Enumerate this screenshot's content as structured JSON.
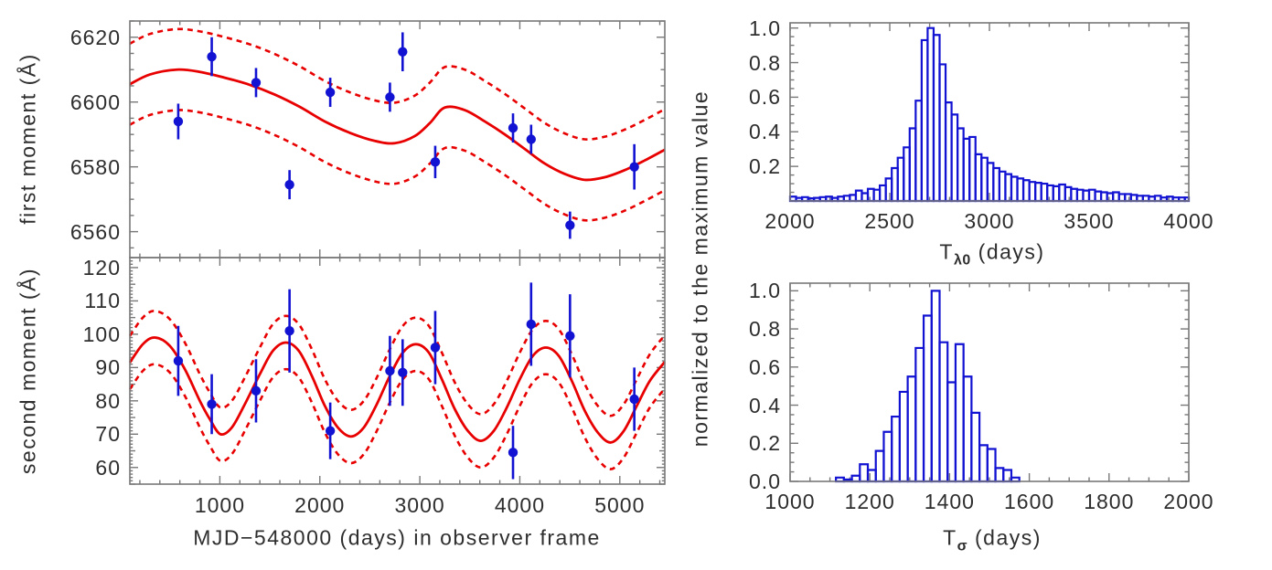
{
  "figure": {
    "background": "#ffffff",
    "blue": "#1212d2",
    "red": "#e80000",
    "frame_color": "#787878",
    "text_color": "#2e2e2e"
  },
  "chart_data": [
    {
      "id": "first-moment-vs-time",
      "type": "scatter",
      "ylabel": "first moment (Å)",
      "xlim": [
        100,
        5450
      ],
      "ylim": [
        6552,
        6625
      ],
      "x_ticks": [
        1000,
        2000,
        3000,
        4000,
        5000
      ],
      "y_ticks": [
        6560,
        6580,
        6600,
        6620
      ],
      "y_tick_labels": [
        "6560",
        "6580",
        "6600",
        "6620"
      ],
      "x_minor": 200,
      "y_minor": 5,
      "grid": false,
      "points": {
        "x": [
          584,
          919,
          1362,
          1697,
          2104,
          2701,
          2828,
          3154,
          3932,
          4113,
          4502,
          5145
        ],
        "y": [
          6594,
          6614,
          6606,
          6574.5,
          6603,
          6601.5,
          6615.5,
          6581.5,
          6592,
          6588.5,
          6562,
          6580
        ],
        "yerr": [
          5.5,
          6,
          4.5,
          4.5,
          4.5,
          4.5,
          6,
          5,
          4.5,
          4.5,
          4.2,
          7
        ]
      },
      "model": {
        "x": [
          100,
          300,
          570,
          800,
          1050,
          1300,
          1550,
          1800,
          2050,
          2300,
          2550,
          2750,
          2950,
          3100,
          3250,
          3450,
          3650,
          3850,
          4050,
          4250,
          4450,
          4650,
          4850,
          5050,
          5250,
          5450
        ],
        "y": [
          6605.5,
          6608.5,
          6610,
          6609.3,
          6607.5,
          6605.3,
          6602.3,
          6598.5,
          6594,
          6590.5,
          6588,
          6587.3,
          6589.5,
          6593.5,
          6598.3,
          6597.5,
          6594,
          6590,
          6585.5,
          6581,
          6577.8,
          6576,
          6576.8,
          6579,
          6582,
          6585.3
        ]
      },
      "band_offset": 12.5
    },
    {
      "id": "second-moment-vs-time",
      "type": "scatter",
      "xlabel": "MJD−548000 (days) in observer frame",
      "ylabel": "second moment (Å)",
      "xlim": [
        100,
        5450
      ],
      "ylim": [
        55,
        123
      ],
      "x_ticks": [
        1000,
        2000,
        3000,
        4000,
        5000
      ],
      "x_tick_labels": [
        "1000",
        "2000",
        "3000",
        "4000",
        "5000"
      ],
      "y_ticks": [
        60,
        70,
        80,
        90,
        100,
        110,
        120
      ],
      "y_tick_labels": [
        "60",
        "70",
        "80",
        "90",
        "100",
        "110",
        "120"
      ],
      "x_minor": 200,
      "y_minor": 1,
      "grid": false,
      "points": {
        "x": [
          584,
          919,
          1362,
          1697,
          2104,
          2701,
          2828,
          3154,
          3932,
          4113,
          4502,
          5145
        ],
        "y": [
          92,
          79,
          83,
          101,
          71,
          89,
          88.5,
          96,
          64.5,
          103,
          99.5,
          80.5
        ],
        "yerr": [
          10.5,
          9,
          9.5,
          12.5,
          8.5,
          10.5,
          10,
          11,
          8,
          12.5,
          12.5,
          9.5
        ]
      },
      "model": {
        "x": [
          100,
          230,
          350,
          500,
          650,
          800,
          900,
          1005,
          1120,
          1250,
          1400,
          1530,
          1660,
          1790,
          1920,
          2050,
          2180,
          2310,
          2440,
          2570,
          2700,
          2830,
          2960,
          3090,
          3220,
          3350,
          3480,
          3610,
          3740,
          3870,
          4000,
          4130,
          4260,
          4390,
          4520,
          4650,
          4780,
          4910,
          5040,
          5170,
          5300,
          5450
        ],
        "y": [
          91.5,
          97,
          99,
          96.5,
          89.5,
          80,
          74.5,
          70,
          72,
          79,
          88,
          95,
          97.5,
          95,
          87.5,
          78.5,
          72,
          69.3,
          72,
          79,
          87.5,
          94.5,
          97,
          94.5,
          86.5,
          77.5,
          71,
          68,
          71,
          78,
          86.5,
          93.5,
          96,
          93.5,
          86,
          77,
          70.5,
          67.5,
          71,
          78.5,
          86,
          91.7
        ]
      },
      "band_offset": 8
    },
    {
      "id": "T-lambda0-distribution",
      "type": "histogram",
      "xlabel": "T_λ0 (days)",
      "xlabel_parts": {
        "base": "T",
        "sub": "λ0",
        "rest": " (days)"
      },
      "ylabel": "normalized to the maximum value",
      "xlim": [
        2000,
        4000
      ],
      "ylim": [
        0,
        1.03
      ],
      "x_ticks": [
        2000,
        2500,
        3000,
        3500,
        4000
      ],
      "x_tick_labels": [
        "2000",
        "2500",
        "3000",
        "3500",
        "4000"
      ],
      "y_ticks": [
        0.2,
        0.4,
        0.6,
        0.8,
        1.0
      ],
      "y_tick_labels": [
        "0.2",
        "0.4",
        "0.6",
        "0.8",
        "1.0"
      ],
      "x_minor": 100,
      "y_minor": 0.05,
      "grid": false,
      "bins": {
        "start": 2000,
        "width": 30,
        "values": [
          0.025,
          0.018,
          0.022,
          0.015,
          0.018,
          0.022,
          0.025,
          0.018,
          0.025,
          0.03,
          0.035,
          0.06,
          0.045,
          0.07,
          0.065,
          0.09,
          0.13,
          0.19,
          0.25,
          0.31,
          0.42,
          0.58,
          0.93,
          1.0,
          0.96,
          0.79,
          0.57,
          0.5,
          0.42,
          0.36,
          0.37,
          0.27,
          0.25,
          0.22,
          0.19,
          0.17,
          0.155,
          0.14,
          0.13,
          0.12,
          0.11,
          0.105,
          0.1,
          0.09,
          0.085,
          0.095,
          0.08,
          0.07,
          0.065,
          0.06,
          0.065,
          0.055,
          0.05,
          0.045,
          0.05,
          0.04,
          0.04,
          0.035,
          0.03,
          0.03,
          0.025,
          0.03,
          0.02,
          0.025,
          0.02,
          0.02,
          0.02
        ]
      }
    },
    {
      "id": "T-sigma-distribution",
      "type": "histogram",
      "xlabel": "T_σ (days)",
      "xlabel_parts": {
        "base": "T",
        "sub": "σ",
        "rest": " (days)"
      },
      "xlim": [
        1000,
        2000
      ],
      "ylim": [
        0,
        1.04
      ],
      "x_ticks": [
        1000,
        1200,
        1400,
        1600,
        1800,
        2000
      ],
      "x_tick_labels": [
        "1000",
        "1200",
        "1400",
        "1600",
        "1800",
        "2000"
      ],
      "y_ticks": [
        0,
        0.2,
        0.4,
        0.6,
        0.8,
        1.0
      ],
      "y_tick_labels": [
        "0.0",
        "0.2",
        "0.4",
        "0.6",
        "0.8",
        "1.0"
      ],
      "x_minor": 50,
      "y_minor": 0.05,
      "grid": false,
      "bins": {
        "start": 1115,
        "width": 20,
        "values": [
          0.02,
          0.01,
          0.03,
          0.09,
          0.06,
          0.16,
          0.26,
          0.34,
          0.47,
          0.55,
          0.7,
          0.87,
          1.0,
          0.73,
          0.52,
          0.72,
          0.55,
          0.36,
          0.19,
          0.17,
          0.07,
          0.06,
          0.02
        ]
      }
    }
  ]
}
